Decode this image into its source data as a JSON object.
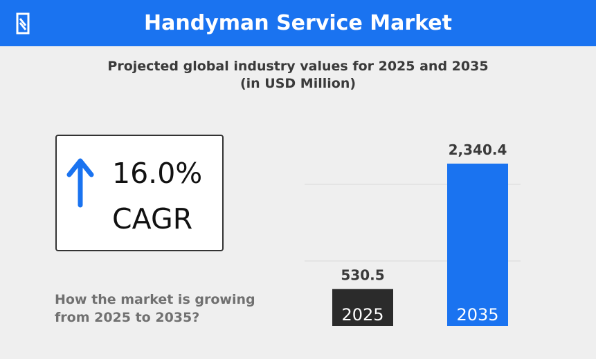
{
  "header": {
    "title": "Handyman Service Market",
    "logo_icon": "nm-logo-icon"
  },
  "subtitle": {
    "line1": "Projected global industry values for 2025 and 2035",
    "line2": "(in USD Million)"
  },
  "cagr": {
    "value": "16.0%",
    "label": "CAGR",
    "icon": "up-arrow-icon"
  },
  "question": {
    "line1": "How the market is growing",
    "line2": "from 2025 to 2035?"
  },
  "chart_data": {
    "type": "bar",
    "categories": [
      "2025",
      "2035"
    ],
    "values": [
      530.5,
      2340.4
    ],
    "value_labels": [
      "530.5",
      "2,340.4"
    ],
    "colors": [
      "#2b2b2b",
      "#1a73f0"
    ],
    "grid": true
  }
}
